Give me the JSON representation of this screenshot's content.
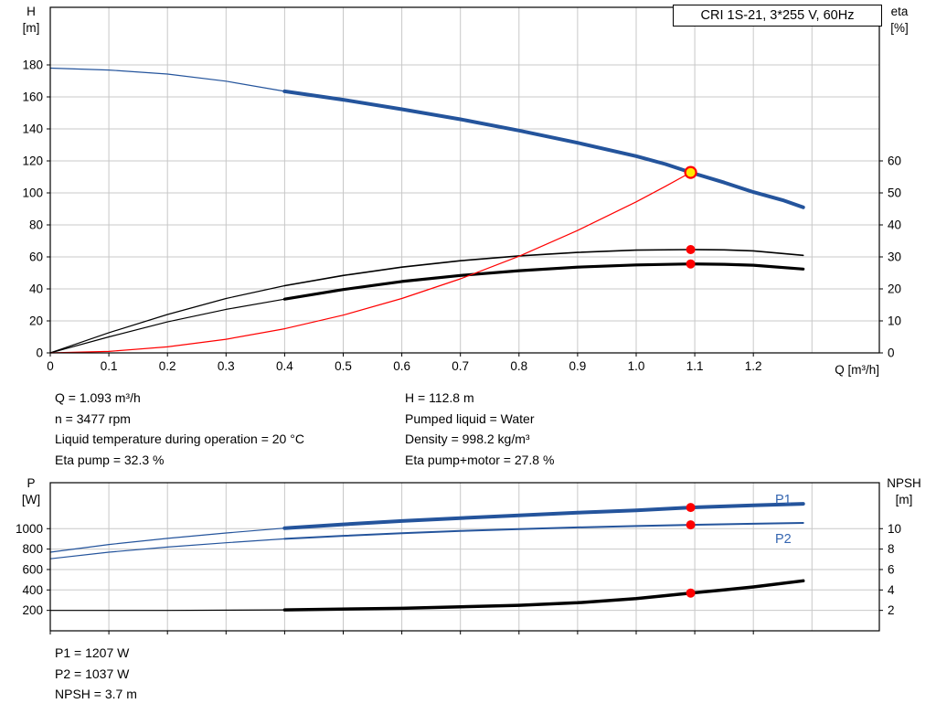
{
  "title_box": "CRI 1S-21, 3*255 V, 60Hz",
  "colors": {
    "curve_blue": "#24549c",
    "label_blue": "#3465b0",
    "red": "#ff0000",
    "yellow": "#ffe800",
    "grid": "#c8c8c8",
    "black": "#000000"
  },
  "labels": {
    "top_left_1": "H",
    "top_left_2": "[m]",
    "top_right_1": "eta",
    "top_right_2": "[%]",
    "top_x": "Q [m³/h]",
    "bottom_left_1": "P",
    "bottom_left_2": "[W]",
    "bottom_right_1": "NPSH",
    "bottom_right_2": "[m]",
    "p1": "P1",
    "p2": "P2"
  },
  "info_top_left": [
    "Q = 1.093 m³/h",
    "n = 3477 rpm",
    "Liquid temperature during operation = 20 °C",
    "Eta pump = 32.3 %"
  ],
  "info_top_right": [
    "H = 112.8 m",
    "Pumped liquid = Water",
    "Density = 998.2 kg/m³",
    "Eta pump+motor = 27.8 %"
  ],
  "info_bottom": [
    "P1 = 1207 W",
    "P2 = 1037 W",
    "NPSH = 3.7 m"
  ],
  "chart_data": [
    {
      "type": "line",
      "name": "qh-eta-chart",
      "title": "CRI 1S-21, 3*255 V, 60Hz",
      "xlabel": "Q [m³/h]",
      "ylabel_left": "H [m]",
      "ylabel_right": "eta [%]",
      "xlim": [
        0,
        1.415
      ],
      "ylim_left": [
        0,
        216
      ],
      "ylim_right": [
        0,
        108
      ],
      "grid": true,
      "x_ticks": [
        [
          0,
          "0"
        ],
        [
          0.1,
          "0.1"
        ],
        [
          0.2,
          "0.2"
        ],
        [
          0.3,
          "0.3"
        ],
        [
          0.4,
          "0.4"
        ],
        [
          0.5,
          "0.5"
        ],
        [
          0.6,
          "0.6"
        ],
        [
          0.7,
          "0.7"
        ],
        [
          0.8,
          "0.8"
        ],
        [
          0.9,
          "0.9"
        ],
        [
          1.0,
          "1.0"
        ],
        [
          1.1,
          "1.1"
        ],
        [
          1.2,
          "1.2"
        ]
      ],
      "y_ticks_left": [
        [
          0,
          "0"
        ],
        [
          20,
          "20"
        ],
        [
          40,
          "40"
        ],
        [
          60,
          "60"
        ],
        [
          80,
          "80"
        ],
        [
          100,
          "100"
        ],
        [
          120,
          "120"
        ],
        [
          140,
          "140"
        ],
        [
          160,
          "160"
        ],
        [
          180,
          "180"
        ]
      ],
      "y_ticks_right": [
        [
          0,
          "0"
        ],
        [
          10,
          "10"
        ],
        [
          20,
          "20"
        ],
        [
          30,
          "30"
        ],
        [
          40,
          "40"
        ],
        [
          50,
          "50"
        ],
        [
          60,
          "60"
        ]
      ],
      "grid_x": [
        0.1,
        0.2,
        0.3,
        0.4,
        0.5,
        0.6,
        0.7,
        0.8,
        0.9,
        1.0,
        1.1,
        1.2,
        1.3
      ],
      "grid_y": [
        20,
        40,
        60,
        80,
        100,
        120,
        140,
        160,
        180
      ],
      "series": [
        {
          "name": "eta-pump-curve-lead",
          "axis": "right",
          "color": "#000000",
          "width": 1.2,
          "points": [
            [
              0,
              0
            ],
            [
              0.1,
              6.3
            ],
            [
              0.2,
              12
            ],
            [
              0.3,
              17
            ],
            [
              0.4,
              21
            ]
          ]
        },
        {
          "name": "eta-pump-curve",
          "axis": "right",
          "color": "#000000",
          "width": 1.6,
          "points": [
            [
              0.4,
              21
            ],
            [
              0.5,
              24.2
            ],
            [
              0.6,
              26.8
            ],
            [
              0.7,
              28.8
            ],
            [
              0.8,
              30.3
            ],
            [
              0.9,
              31.4
            ],
            [
              1.0,
              32.1
            ],
            [
              1.093,
              32.3
            ],
            [
              1.15,
              32.2
            ],
            [
              1.2,
              31.9
            ],
            [
              1.285,
              30.5
            ]
          ]
        },
        {
          "name": "eta-pump-motor-curve-lead",
          "axis": "right",
          "color": "#000000",
          "width": 1.2,
          "points": [
            [
              0,
              0
            ],
            [
              0.1,
              5
            ],
            [
              0.2,
              9.7
            ],
            [
              0.3,
              13.6
            ],
            [
              0.4,
              16.8
            ]
          ]
        },
        {
          "name": "eta-pump-motor-curve",
          "axis": "right",
          "color": "#000000",
          "width": 3.2,
          "points": [
            [
              0.4,
              16.8
            ],
            [
              0.5,
              19.8
            ],
            [
              0.6,
              22.3
            ],
            [
              0.7,
              24.2
            ],
            [
              0.8,
              25.7
            ],
            [
              0.9,
              26.8
            ],
            [
              1.0,
              27.5
            ],
            [
              1.093,
              27.8
            ],
            [
              1.15,
              27.7
            ],
            [
              1.2,
              27.4
            ],
            [
              1.285,
              26.2
            ]
          ]
        },
        {
          "name": "system-curve",
          "axis": "left",
          "color": "#ff0000",
          "width": 1.2,
          "points": [
            [
              0,
              0
            ],
            [
              0.1,
              0.9
            ],
            [
              0.2,
              3.8
            ],
            [
              0.3,
              8.5
            ],
            [
              0.4,
              15.1
            ],
            [
              0.5,
              23.6
            ],
            [
              0.6,
              34
            ],
            [
              0.7,
              46.3
            ],
            [
              0.8,
              60.4
            ],
            [
              0.9,
              76.5
            ],
            [
              1.0,
              94.4
            ],
            [
              1.05,
              104.1
            ],
            [
              1.093,
              112.8
            ]
          ]
        },
        {
          "name": "h-curve-lead",
          "axis": "left",
          "color": "#24549c",
          "width": 1.2,
          "points": [
            [
              0,
              178
            ],
            [
              0.1,
              176.8
            ],
            [
              0.2,
              174.3
            ],
            [
              0.3,
              169.8
            ],
            [
              0.4,
              163.5
            ]
          ]
        },
        {
          "name": "h-curve",
          "axis": "left",
          "color": "#24549c",
          "width": 4,
          "points": [
            [
              0.4,
              163.5
            ],
            [
              0.5,
              158.2
            ],
            [
              0.6,
              152.3
            ],
            [
              0.7,
              146
            ],
            [
              0.8,
              139
            ],
            [
              0.9,
              131.3
            ],
            [
              1.0,
              123
            ],
            [
              1.05,
              118
            ],
            [
              1.093,
              112.8
            ],
            [
              1.15,
              106.5
            ],
            [
              1.2,
              100.5
            ],
            [
              1.25,
              95.5
            ],
            [
              1.285,
              91
            ]
          ]
        }
      ],
      "markers": [
        {
          "name": "eta-pump-motor-point",
          "axis": "right",
          "x": 1.093,
          "y": 27.8,
          "r": 5,
          "fill": "#ff0000"
        },
        {
          "name": "eta-pump-point",
          "axis": "right",
          "x": 1.093,
          "y": 32.3,
          "r": 5,
          "fill": "#ff0000"
        },
        {
          "name": "duty-point",
          "axis": "left",
          "x": 1.093,
          "y": 112.8,
          "r": 6,
          "fill": "#ffe800",
          "stroke": "#ff0000",
          "stroke_width": 2.2
        }
      ]
    },
    {
      "type": "line",
      "name": "power-npsh-chart",
      "title": "",
      "xlabel": "",
      "ylabel_left": "P [W]",
      "ylabel_right": "NPSH [m]",
      "xlim": [
        0,
        1.415
      ],
      "ylim_left": [
        0,
        1450
      ],
      "ylim_right": [
        0,
        14.5
      ],
      "grid": true,
      "x_ticks": [
        [
          0,
          ""
        ],
        [
          0.1,
          ""
        ],
        [
          0.2,
          ""
        ],
        [
          0.3,
          ""
        ],
        [
          0.4,
          ""
        ],
        [
          0.5,
          ""
        ],
        [
          0.6,
          ""
        ],
        [
          0.7,
          ""
        ],
        [
          0.8,
          ""
        ],
        [
          0.9,
          ""
        ],
        [
          1.0,
          ""
        ],
        [
          1.1,
          ""
        ],
        [
          1.2,
          ""
        ]
      ],
      "y_ticks_left": [
        [
          200,
          "200"
        ],
        [
          400,
          "400"
        ],
        [
          600,
          "600"
        ],
        [
          800,
          "800"
        ],
        [
          1000,
          "1000"
        ]
      ],
      "y_ticks_right": [
        [
          2,
          "2"
        ],
        [
          4,
          "4"
        ],
        [
          6,
          "6"
        ],
        [
          8,
          "8"
        ],
        [
          10,
          "10"
        ]
      ],
      "grid_x": [
        0.1,
        0.2,
        0.3,
        0.4,
        0.5,
        0.6,
        0.7,
        0.8,
        0.9,
        1.0,
        1.1,
        1.2,
        1.3
      ],
      "grid_y": [
        200,
        400,
        600,
        800,
        1000
      ],
      "series": [
        {
          "name": "p1-curve-lead",
          "axis": "left",
          "color": "#24549c",
          "width": 1.2,
          "points": [
            [
              0,
              770
            ],
            [
              0.1,
              845
            ],
            [
              0.2,
              905
            ],
            [
              0.3,
              958
            ],
            [
              0.4,
              1005
            ]
          ]
        },
        {
          "name": "p1-curve",
          "axis": "left",
          "color": "#24549c",
          "width": 4,
          "points": [
            [
              0.4,
              1005
            ],
            [
              0.5,
              1042
            ],
            [
              0.6,
              1075
            ],
            [
              0.7,
              1104
            ],
            [
              0.8,
              1130
            ],
            [
              0.9,
              1156
            ],
            [
              1.0,
              1180
            ],
            [
              1.093,
              1207
            ],
            [
              1.2,
              1228
            ],
            [
              1.285,
              1243
            ]
          ]
        },
        {
          "name": "p2-curve-lead",
          "axis": "left",
          "color": "#24549c",
          "width": 1.2,
          "points": [
            [
              0,
              705
            ],
            [
              0.1,
              770
            ],
            [
              0.2,
              820
            ],
            [
              0.3,
              862
            ],
            [
              0.4,
              900
            ]
          ]
        },
        {
          "name": "p2-curve",
          "axis": "left",
          "color": "#24549c",
          "width": 2,
          "points": [
            [
              0.4,
              900
            ],
            [
              0.5,
              930
            ],
            [
              0.6,
              955
            ],
            [
              0.7,
              977
            ],
            [
              0.8,
              996
            ],
            [
              0.9,
              1012
            ],
            [
              1.0,
              1026
            ],
            [
              1.093,
              1037
            ],
            [
              1.2,
              1048
            ],
            [
              1.285,
              1056
            ]
          ]
        },
        {
          "name": "npsh-curve-lead",
          "axis": "right",
          "color": "#000000",
          "width": 1.2,
          "points": [
            [
              0,
              2.0
            ],
            [
              0.2,
              2.0
            ],
            [
              0.4,
              2.05
            ]
          ]
        },
        {
          "name": "npsh-curve",
          "axis": "right",
          "color": "#000000",
          "width": 3.5,
          "points": [
            [
              0.4,
              2.05
            ],
            [
              0.6,
              2.2
            ],
            [
              0.8,
              2.5
            ],
            [
              0.9,
              2.75
            ],
            [
              1.0,
              3.15
            ],
            [
              1.093,
              3.7
            ],
            [
              1.15,
              4.0
            ],
            [
              1.2,
              4.3
            ],
            [
              1.285,
              4.9
            ]
          ]
        }
      ],
      "markers": [
        {
          "name": "p1-point",
          "axis": "left",
          "x": 1.093,
          "y": 1207,
          "r": 5,
          "fill": "#ff0000"
        },
        {
          "name": "p2-point",
          "axis": "left",
          "x": 1.093,
          "y": 1037,
          "r": 5,
          "fill": "#ff0000"
        },
        {
          "name": "npsh-point",
          "axis": "right",
          "x": 1.093,
          "y": 3.7,
          "r": 5,
          "fill": "#ff0000"
        }
      ]
    }
  ]
}
